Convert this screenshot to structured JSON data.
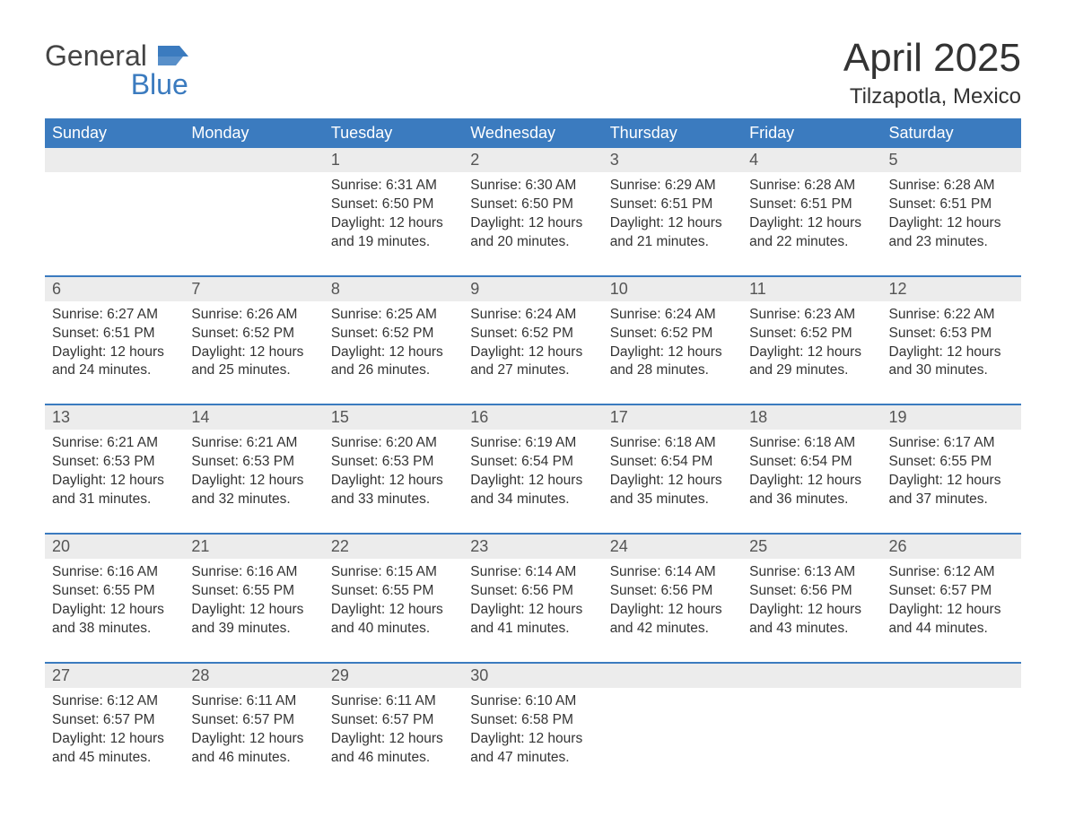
{
  "brand": {
    "line1": "General",
    "line2": "Blue",
    "flag_color": "#3b7bbf"
  },
  "title": "April 2025",
  "location": "Tilzapotla, Mexico",
  "colors": {
    "header_bg": "#3b7bbf",
    "header_text": "#ffffff",
    "daynum_bg": "#ececec",
    "rule": "#3b7bbf",
    "text": "#333333"
  },
  "day_headers": [
    "Sunday",
    "Monday",
    "Tuesday",
    "Wednesday",
    "Thursday",
    "Friday",
    "Saturday"
  ],
  "weeks": [
    [
      null,
      null,
      {
        "n": "1",
        "sr": "Sunrise: 6:31 AM",
        "ss": "Sunset: 6:50 PM",
        "dl": "Daylight: 12 hours and 19 minutes."
      },
      {
        "n": "2",
        "sr": "Sunrise: 6:30 AM",
        "ss": "Sunset: 6:50 PM",
        "dl": "Daylight: 12 hours and 20 minutes."
      },
      {
        "n": "3",
        "sr": "Sunrise: 6:29 AM",
        "ss": "Sunset: 6:51 PM",
        "dl": "Daylight: 12 hours and 21 minutes."
      },
      {
        "n": "4",
        "sr": "Sunrise: 6:28 AM",
        "ss": "Sunset: 6:51 PM",
        "dl": "Daylight: 12 hours and 22 minutes."
      },
      {
        "n": "5",
        "sr": "Sunrise: 6:28 AM",
        "ss": "Sunset: 6:51 PM",
        "dl": "Daylight: 12 hours and 23 minutes."
      }
    ],
    [
      {
        "n": "6",
        "sr": "Sunrise: 6:27 AM",
        "ss": "Sunset: 6:51 PM",
        "dl": "Daylight: 12 hours and 24 minutes."
      },
      {
        "n": "7",
        "sr": "Sunrise: 6:26 AM",
        "ss": "Sunset: 6:52 PM",
        "dl": "Daylight: 12 hours and 25 minutes."
      },
      {
        "n": "8",
        "sr": "Sunrise: 6:25 AM",
        "ss": "Sunset: 6:52 PM",
        "dl": "Daylight: 12 hours and 26 minutes."
      },
      {
        "n": "9",
        "sr": "Sunrise: 6:24 AM",
        "ss": "Sunset: 6:52 PM",
        "dl": "Daylight: 12 hours and 27 minutes."
      },
      {
        "n": "10",
        "sr": "Sunrise: 6:24 AM",
        "ss": "Sunset: 6:52 PM",
        "dl": "Daylight: 12 hours and 28 minutes."
      },
      {
        "n": "11",
        "sr": "Sunrise: 6:23 AM",
        "ss": "Sunset: 6:52 PM",
        "dl": "Daylight: 12 hours and 29 minutes."
      },
      {
        "n": "12",
        "sr": "Sunrise: 6:22 AM",
        "ss": "Sunset: 6:53 PM",
        "dl": "Daylight: 12 hours and 30 minutes."
      }
    ],
    [
      {
        "n": "13",
        "sr": "Sunrise: 6:21 AM",
        "ss": "Sunset: 6:53 PM",
        "dl": "Daylight: 12 hours and 31 minutes."
      },
      {
        "n": "14",
        "sr": "Sunrise: 6:21 AM",
        "ss": "Sunset: 6:53 PM",
        "dl": "Daylight: 12 hours and 32 minutes."
      },
      {
        "n": "15",
        "sr": "Sunrise: 6:20 AM",
        "ss": "Sunset: 6:53 PM",
        "dl": "Daylight: 12 hours and 33 minutes."
      },
      {
        "n": "16",
        "sr": "Sunrise: 6:19 AM",
        "ss": "Sunset: 6:54 PM",
        "dl": "Daylight: 12 hours and 34 minutes."
      },
      {
        "n": "17",
        "sr": "Sunrise: 6:18 AM",
        "ss": "Sunset: 6:54 PM",
        "dl": "Daylight: 12 hours and 35 minutes."
      },
      {
        "n": "18",
        "sr": "Sunrise: 6:18 AM",
        "ss": "Sunset: 6:54 PM",
        "dl": "Daylight: 12 hours and 36 minutes."
      },
      {
        "n": "19",
        "sr": "Sunrise: 6:17 AM",
        "ss": "Sunset: 6:55 PM",
        "dl": "Daylight: 12 hours and 37 minutes."
      }
    ],
    [
      {
        "n": "20",
        "sr": "Sunrise: 6:16 AM",
        "ss": "Sunset: 6:55 PM",
        "dl": "Daylight: 12 hours and 38 minutes."
      },
      {
        "n": "21",
        "sr": "Sunrise: 6:16 AM",
        "ss": "Sunset: 6:55 PM",
        "dl": "Daylight: 12 hours and 39 minutes."
      },
      {
        "n": "22",
        "sr": "Sunrise: 6:15 AM",
        "ss": "Sunset: 6:55 PM",
        "dl": "Daylight: 12 hours and 40 minutes."
      },
      {
        "n": "23",
        "sr": "Sunrise: 6:14 AM",
        "ss": "Sunset: 6:56 PM",
        "dl": "Daylight: 12 hours and 41 minutes."
      },
      {
        "n": "24",
        "sr": "Sunrise: 6:14 AM",
        "ss": "Sunset: 6:56 PM",
        "dl": "Daylight: 12 hours and 42 minutes."
      },
      {
        "n": "25",
        "sr": "Sunrise: 6:13 AM",
        "ss": "Sunset: 6:56 PM",
        "dl": "Daylight: 12 hours and 43 minutes."
      },
      {
        "n": "26",
        "sr": "Sunrise: 6:12 AM",
        "ss": "Sunset: 6:57 PM",
        "dl": "Daylight: 12 hours and 44 minutes."
      }
    ],
    [
      {
        "n": "27",
        "sr": "Sunrise: 6:12 AM",
        "ss": "Sunset: 6:57 PM",
        "dl": "Daylight: 12 hours and 45 minutes."
      },
      {
        "n": "28",
        "sr": "Sunrise: 6:11 AM",
        "ss": "Sunset: 6:57 PM",
        "dl": "Daylight: 12 hours and 46 minutes."
      },
      {
        "n": "29",
        "sr": "Sunrise: 6:11 AM",
        "ss": "Sunset: 6:57 PM",
        "dl": "Daylight: 12 hours and 46 minutes."
      },
      {
        "n": "30",
        "sr": "Sunrise: 6:10 AM",
        "ss": "Sunset: 6:58 PM",
        "dl": "Daylight: 12 hours and 47 minutes."
      },
      null,
      null,
      null
    ]
  ]
}
